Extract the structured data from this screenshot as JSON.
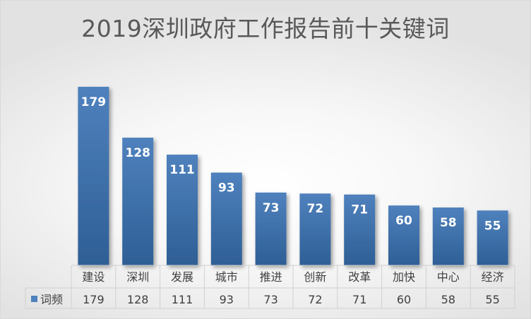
{
  "chart_data": {
    "type": "bar",
    "title": "2019深圳政府工作报告前十关键词",
    "categories": [
      "建设",
      "深圳",
      "发展",
      "城市",
      "推进",
      "创新",
      "改革",
      "加快",
      "中心",
      "经济"
    ],
    "series": [
      {
        "name": "词频",
        "values": [
          179,
          128,
          111,
          93,
          73,
          72,
          71,
          60,
          58,
          55
        ]
      }
    ],
    "ylim": [
      0,
      200
    ],
    "grid": false,
    "legend": "data-table-left",
    "data_table": true,
    "colors": {
      "bar_top": "#4f81bd",
      "bar_bottom": "#2e5f95",
      "label": "#ffffff",
      "text": "#404040",
      "title": "#595959"
    }
  }
}
